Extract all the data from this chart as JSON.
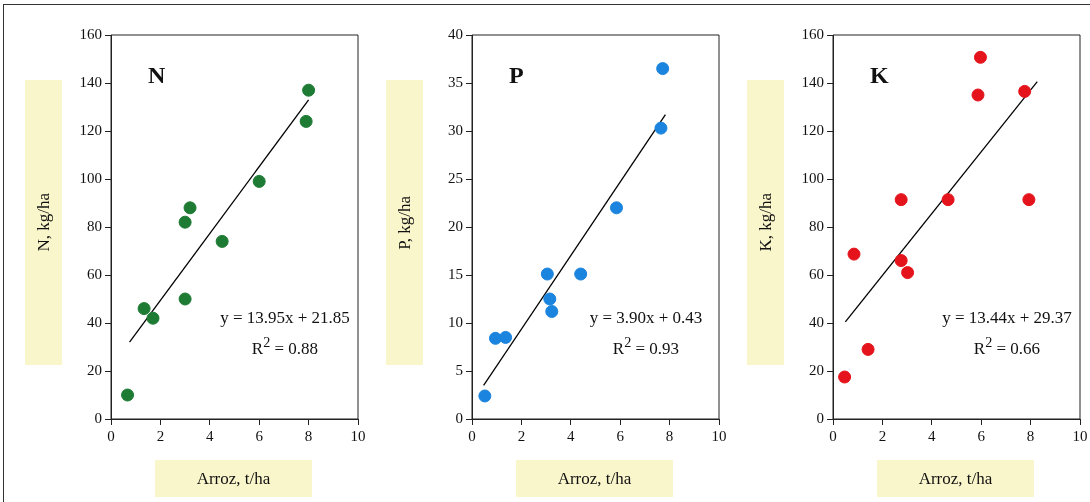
{
  "chart_data": [
    {
      "type": "scatter",
      "annotations": [
        "N",
        "y = 13.95x + 21.85",
        "R$^{2}$ = 0.88"
      ],
      "xlabel": "Arroz, t/ha",
      "ylabel": "N, kg/ha",
      "xlim": [
        0,
        10
      ],
      "xticks": [
        0,
        2,
        4,
        6,
        8,
        10
      ],
      "ylim": [
        0,
        160
      ],
      "yticks": [
        0,
        20,
        40,
        60,
        80,
        100,
        120,
        140,
        160
      ],
      "grid": false,
      "legend": false,
      "marker": "circle",
      "series": [
        {
          "color": "#1e7b34",
          "x": [
            0.67,
            1.34,
            1.7,
            3.0,
            3.2,
            3.0,
            4.5,
            6.0,
            7.9,
            8.0
          ],
          "values": [
            10,
            46,
            42,
            82,
            88,
            50,
            74,
            99,
            124,
            137
          ]
        },
        {
          "type": "line",
          "marker": "none",
          "color": "#000000",
          "x": [
            0.75,
            8.0
          ],
          "values": [
            32,
            133
          ]
        }
      ]
    },
    {
      "type": "scatter",
      "annotations": [
        "P",
        "y = 3.90x + 0.43",
        "R$^{2}$ = 0.93"
      ],
      "xlabel": "Arroz, t/ha",
      "ylabel": "P, kg/ha",
      "xlim": [
        0,
        10
      ],
      "xticks": [
        0,
        2,
        4,
        6,
        8,
        10
      ],
      "ylim": [
        0,
        40
      ],
      "yticks": [
        0,
        5,
        10,
        15,
        20,
        25,
        30,
        35,
        40
      ],
      "grid": false,
      "legend": false,
      "marker": "circle",
      "series": [
        {
          "color": "#1a84de",
          "x": [
            0.52,
            0.95,
            1.36,
            3.05,
            3.15,
            3.23,
            4.4,
            5.85,
            7.65,
            7.72
          ],
          "values": [
            2.4,
            8.4,
            8.5,
            15.1,
            12.5,
            11.2,
            15.1,
            22,
            30.3,
            36.5
          ]
        },
        {
          "type": "line",
          "marker": "none",
          "color": "#000000",
          "x": [
            0.47,
            7.83
          ],
          "values": [
            3.5,
            31.7
          ]
        }
      ]
    },
    {
      "type": "scatter",
      "annotations": [
        "K",
        "y = 13.44x + 29.37",
        "R$^{2}$ = 0.66"
      ],
      "xlabel": "Arroz, t/ha",
      "ylabel": "K, kg/ha",
      "xlim": [
        0,
        10
      ],
      "xticks": [
        0,
        2,
        4,
        6,
        8,
        10
      ],
      "ylim": [
        0,
        160
      ],
      "yticks": [
        0,
        20,
        40,
        60,
        80,
        100,
        120,
        140,
        160
      ],
      "grid": false,
      "legend": false,
      "marker": "circle",
      "series": [
        {
          "color": "#e5141c",
          "x": [
            0.47,
            0.85,
            1.42,
            2.76,
            2.76,
            3.02,
            4.66,
            5.87,
            5.97,
            7.76,
            7.93
          ],
          "values": [
            17.5,
            68.7,
            29,
            91.4,
            66,
            61,
            91.4,
            135,
            150.7,
            136.5,
            91.4
          ]
        },
        {
          "type": "line",
          "marker": "none",
          "color": "#000000",
          "x": [
            0.5,
            8.27
          ],
          "values": [
            40.5,
            140.6
          ]
        }
      ]
    }
  ]
}
